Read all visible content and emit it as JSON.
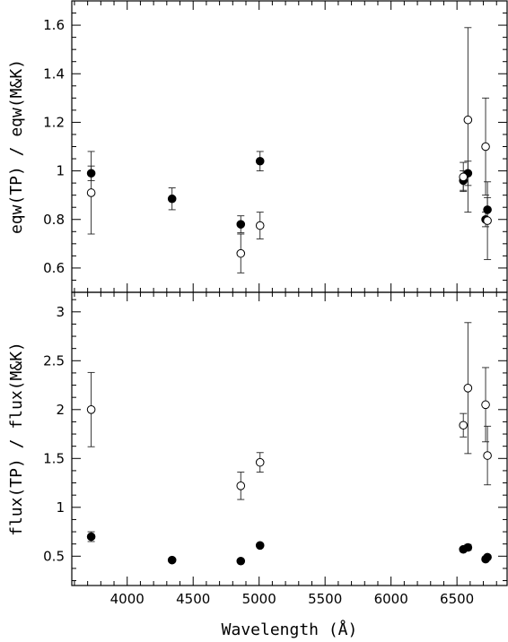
{
  "chart_data": [
    {
      "type": "scatter",
      "panel": "top",
      "ylabel": "eqw(TP) / eqw(M&K)",
      "xlim": [
        3580,
        6880
      ],
      "ylim": [
        0.5,
        1.7
      ],
      "y_ticks": [
        0.6,
        0.8,
        1,
        1.2,
        1.4,
        1.6
      ],
      "y_tick_labels": [
        "0.6",
        "0.8",
        "1",
        "1.2",
        "1.4",
        "1.6"
      ],
      "series": [
        {
          "marker": "filled",
          "points": [
            {
              "x": 3727,
              "y": 0.99,
              "err": 0.03
            },
            {
              "x": 4340,
              "y": 0.885,
              "err": 0.045
            },
            {
              "x": 4861,
              "y": 0.78,
              "err": 0.035
            },
            {
              "x": 5007,
              "y": 1.04,
              "err": 0.04
            },
            {
              "x": 6548,
              "y": 0.96,
              "err": 0.04
            },
            {
              "x": 6583,
              "y": 0.99,
              "err": 0.05
            },
            {
              "x": 6717,
              "y": 0.8,
              "err": 0.03
            },
            {
              "x": 6731,
              "y": 0.84,
              "err": 0.05
            }
          ]
        },
        {
          "marker": "open",
          "points": [
            {
              "x": 3727,
              "y": 0.91,
              "err": 0.17
            },
            {
              "x": 4861,
              "y": 0.66,
              "err": 0.08
            },
            {
              "x": 5007,
              "y": 0.775,
              "err": 0.055
            },
            {
              "x": 6548,
              "y": 0.975,
              "err": 0.06
            },
            {
              "x": 6583,
              "y": 1.21,
              "err": 0.38
            },
            {
              "x": 6717,
              "y": 1.1,
              "err": 0.2
            },
            {
              "x": 6731,
              "y": 0.795,
              "err": 0.16
            }
          ]
        }
      ]
    },
    {
      "type": "scatter",
      "panel": "bottom",
      "ylabel": "flux(TP) / flux(M&K)",
      "xlabel": "Wavelength (Å)",
      "xlim": [
        3580,
        6880
      ],
      "ylim": [
        0.2,
        3.2
      ],
      "x_ticks": [
        4000,
        4500,
        5000,
        5500,
        6000,
        6500
      ],
      "x_tick_labels": [
        "4000",
        "4500",
        "5000",
        "5500",
        "6000",
        "6500"
      ],
      "y_ticks": [
        0.5,
        1,
        1.5,
        2,
        2.5,
        3
      ],
      "y_tick_labels": [
        "0.5",
        "1",
        "1.5",
        "2",
        "2.5",
        "3"
      ],
      "series": [
        {
          "marker": "filled",
          "points": [
            {
              "x": 3727,
              "y": 0.7,
              "err": 0.05
            },
            {
              "x": 4340,
              "y": 0.46,
              "err": 0.015
            },
            {
              "x": 4861,
              "y": 0.45,
              "err": 0.015
            },
            {
              "x": 5007,
              "y": 0.61,
              "err": 0.015
            },
            {
              "x": 6548,
              "y": 0.57,
              "err": 0.02
            },
            {
              "x": 6583,
              "y": 0.59,
              "err": 0.03
            },
            {
              "x": 6717,
              "y": 0.47,
              "err": 0.015
            },
            {
              "x": 6731,
              "y": 0.49,
              "err": 0.02
            }
          ]
        },
        {
          "marker": "open",
          "points": [
            {
              "x": 3727,
              "y": 2.0,
              "err": 0.38
            },
            {
              "x": 4861,
              "y": 1.22,
              "err": 0.14
            },
            {
              "x": 5007,
              "y": 1.46,
              "err": 0.1
            },
            {
              "x": 6548,
              "y": 1.84,
              "err": 0.12
            },
            {
              "x": 6583,
              "y": 2.22,
              "err": 0.67
            },
            {
              "x": 6717,
              "y": 2.05,
              "err": 0.38
            },
            {
              "x": 6731,
              "y": 1.53,
              "err": 0.3
            }
          ]
        }
      ]
    }
  ]
}
